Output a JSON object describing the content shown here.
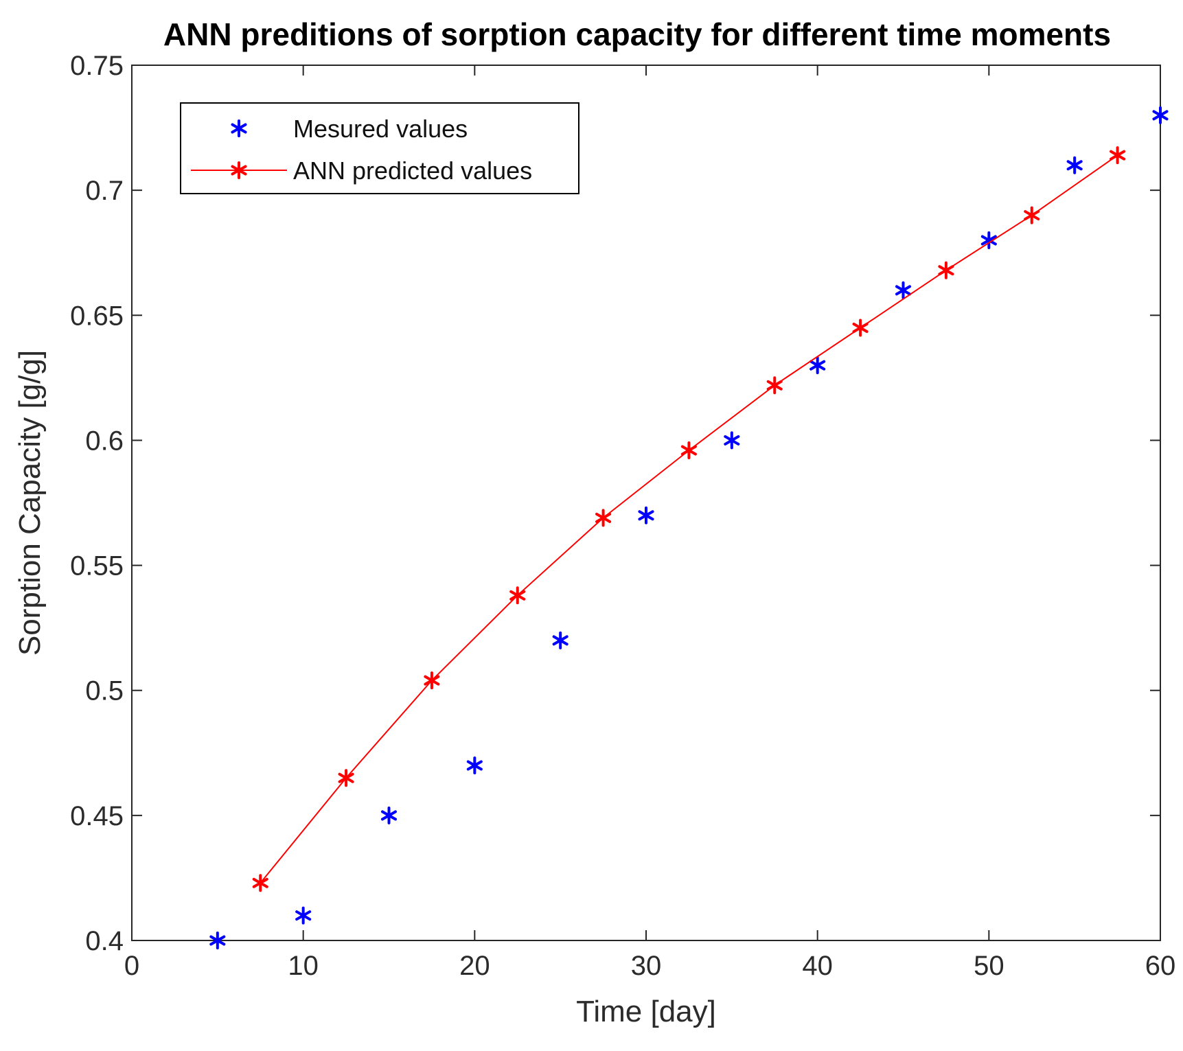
{
  "chart_data": {
    "type": "line",
    "title": "ANN preditions of sorption capacity for different time moments",
    "xlabel": "Time [day]",
    "ylabel": "Sorption Capacity [g/g]",
    "xlim": [
      0,
      60
    ],
    "ylim": [
      0.4,
      0.75
    ],
    "xticks": [
      "0",
      "10",
      "20",
      "30",
      "40",
      "50",
      "60"
    ],
    "yticks": [
      "0.4",
      "0.45",
      "0.5",
      "0.55",
      "0.6",
      "0.65",
      "0.7",
      "0.75"
    ],
    "grid": false,
    "legend_position": "top-left",
    "series": [
      {
        "name": "Mesured values",
        "style": "markers",
        "marker": "asterisk",
        "color": "#0000ff",
        "x": [
          5,
          10,
          15,
          20,
          25,
          30,
          35,
          40,
          45,
          50,
          55,
          60
        ],
        "y": [
          0.4,
          0.41,
          0.45,
          0.47,
          0.52,
          0.57,
          0.6,
          0.63,
          0.66,
          0.68,
          0.71,
          0.73
        ]
      },
      {
        "name": "ANN predicted values",
        "style": "line+markers",
        "marker": "asterisk",
        "color": "#ff0000",
        "x": [
          7.5,
          12.5,
          17.5,
          22.5,
          27.5,
          32.5,
          37.5,
          42.5,
          47.5,
          52.5,
          57.5
        ],
        "y": [
          0.423,
          0.465,
          0.504,
          0.538,
          0.569,
          0.596,
          0.622,
          0.645,
          0.668,
          0.69,
          0.714
        ]
      }
    ]
  }
}
